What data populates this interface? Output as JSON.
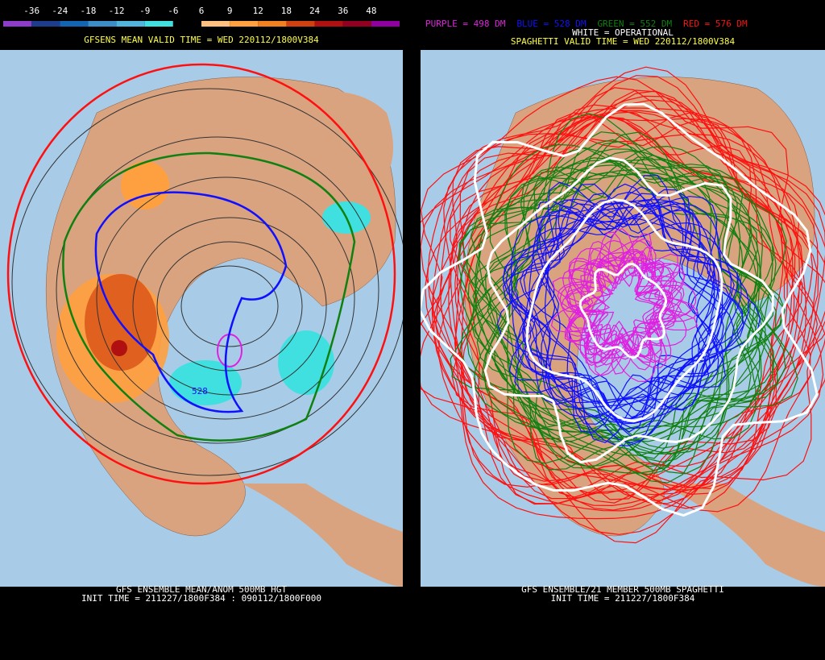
{
  "left_panel": {
    "colorbar": {
      "labels": [
        -36,
        -24,
        -18,
        -12,
        -9,
        -6,
        6,
        9,
        12,
        18,
        24,
        36,
        48
      ],
      "colors": [
        "#8c3cc8",
        "#1e3c8c",
        "#1464b4",
        "#3c8cc8",
        "#50b4dc",
        "#40e0e0",
        "#000000",
        "#ffc080",
        "#ffa040",
        "#f08020",
        "#d04010",
        "#b01010",
        "#900020",
        "#9000a0"
      ]
    },
    "title": "GFSENS MEAN VALID TIME = WED 220112/1800V384",
    "contour_label": "528",
    "footer": [
      "GFS ENSEMBLE MEAN/ANOM 500MB HGT",
      "INIT TIME = 211227/1800F384 : 090112/1800F000"
    ]
  },
  "right_panel": {
    "legend": [
      {
        "label": "PURPLE = 498 DM",
        "color": "#e020e0"
      },
      {
        "label": "BLUE = 528 DM",
        "color": "#1010ff"
      },
      {
        "label": "GREEN = 552 DM",
        "color": "#108010"
      },
      {
        "label": "RED = 576 DM",
        "color": "#ff1010"
      }
    ],
    "operational": "WHITE = OPERATIONAL",
    "title": "SPAGHETTI VALID TIME = WED 220112/1800V384",
    "footer": [
      "GFS ENSEMBLE/21 MEMBER 500MB SPAGHETTI",
      "INIT TIME = 211227/1800F384"
    ]
  }
}
